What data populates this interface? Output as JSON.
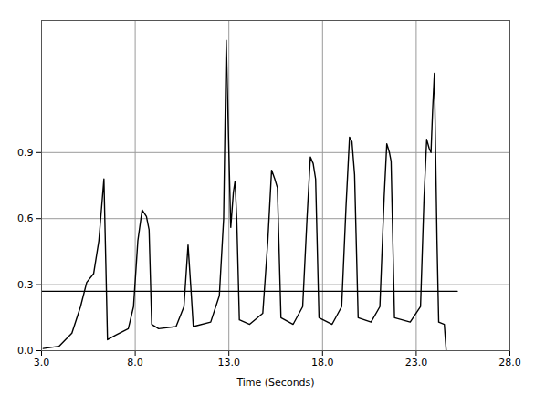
{
  "chart_data": {
    "type": "line",
    "xlabel": "Time (Seconds)",
    "color": "#000000",
    "grid": true,
    "xlim": [
      3.0,
      28.0
    ],
    "xticks": [
      {
        "value": 3,
        "label": "3.0"
      },
      {
        "value": 8,
        "label": "8.0"
      },
      {
        "value": 13,
        "label": "13.0"
      },
      {
        "value": 18,
        "label": "18.0"
      },
      {
        "value": 23,
        "label": "23.0"
      },
      {
        "value": 28,
        "label": "28.0"
      }
    ],
    "ylim": [
      0,
      1.5
    ],
    "yticks": [
      {
        "value": 0,
        "label": "0.0"
      },
      {
        "value": 0.3,
        "label": "0.3"
      },
      {
        "value": 0.6,
        "label": "0.6"
      },
      {
        "value": 0.9,
        "label": "0.9"
      }
    ],
    "reference_line": {
      "y": 0.27,
      "x": [
        3.0,
        25.2
      ]
    },
    "x": [
      3.09,
      3.93,
      4.62,
      5.08,
      5.41,
      5.78,
      6.06,
      6.33,
      6.43,
      6.52,
      6.94,
      7.63,
      7.91,
      8.14,
      8.37,
      8.6,
      8.74,
      8.88,
      9.25,
      10.18,
      10.6,
      10.82,
      10.96,
      11.1,
      12.03,
      12.49,
      12.72,
      12.86,
      13.0,
      13.1,
      13.24,
      13.33,
      13.42,
      13.56,
      14.11,
      14.81,
      15.08,
      15.28,
      15.45,
      15.59,
      15.78,
      16.43,
      16.94,
      17.17,
      17.35,
      17.5,
      17.63,
      17.81,
      18.51,
      19.02,
      19.25,
      19.44,
      19.57,
      19.71,
      19.9,
      20.59,
      21.06,
      21.29,
      21.43,
      21.57,
      21.66,
      21.84,
      22.68,
      23.23,
      23.42,
      23.56,
      23.69,
      23.79,
      23.88,
      23.97,
      24.11,
      24.2,
      24.5,
      24.6
    ],
    "values": [
      0.01,
      0.02,
      0.08,
      0.2,
      0.31,
      0.35,
      0.5,
      0.78,
      0.4,
      0.05,
      0.07,
      0.1,
      0.2,
      0.5,
      0.64,
      0.61,
      0.55,
      0.12,
      0.1,
      0.11,
      0.2,
      0.48,
      0.3,
      0.11,
      0.13,
      0.25,
      0.6,
      1.41,
      0.9,
      0.56,
      0.72,
      0.77,
      0.6,
      0.14,
      0.12,
      0.17,
      0.5,
      0.82,
      0.78,
      0.74,
      0.15,
      0.12,
      0.2,
      0.6,
      0.88,
      0.85,
      0.78,
      0.15,
      0.12,
      0.2,
      0.65,
      0.97,
      0.95,
      0.8,
      0.15,
      0.13,
      0.2,
      0.7,
      0.94,
      0.9,
      0.86,
      0.15,
      0.13,
      0.2,
      0.7,
      0.96,
      0.92,
      0.9,
      1.1,
      1.26,
      0.5,
      0.13,
      0.12,
      0.0
    ]
  }
}
